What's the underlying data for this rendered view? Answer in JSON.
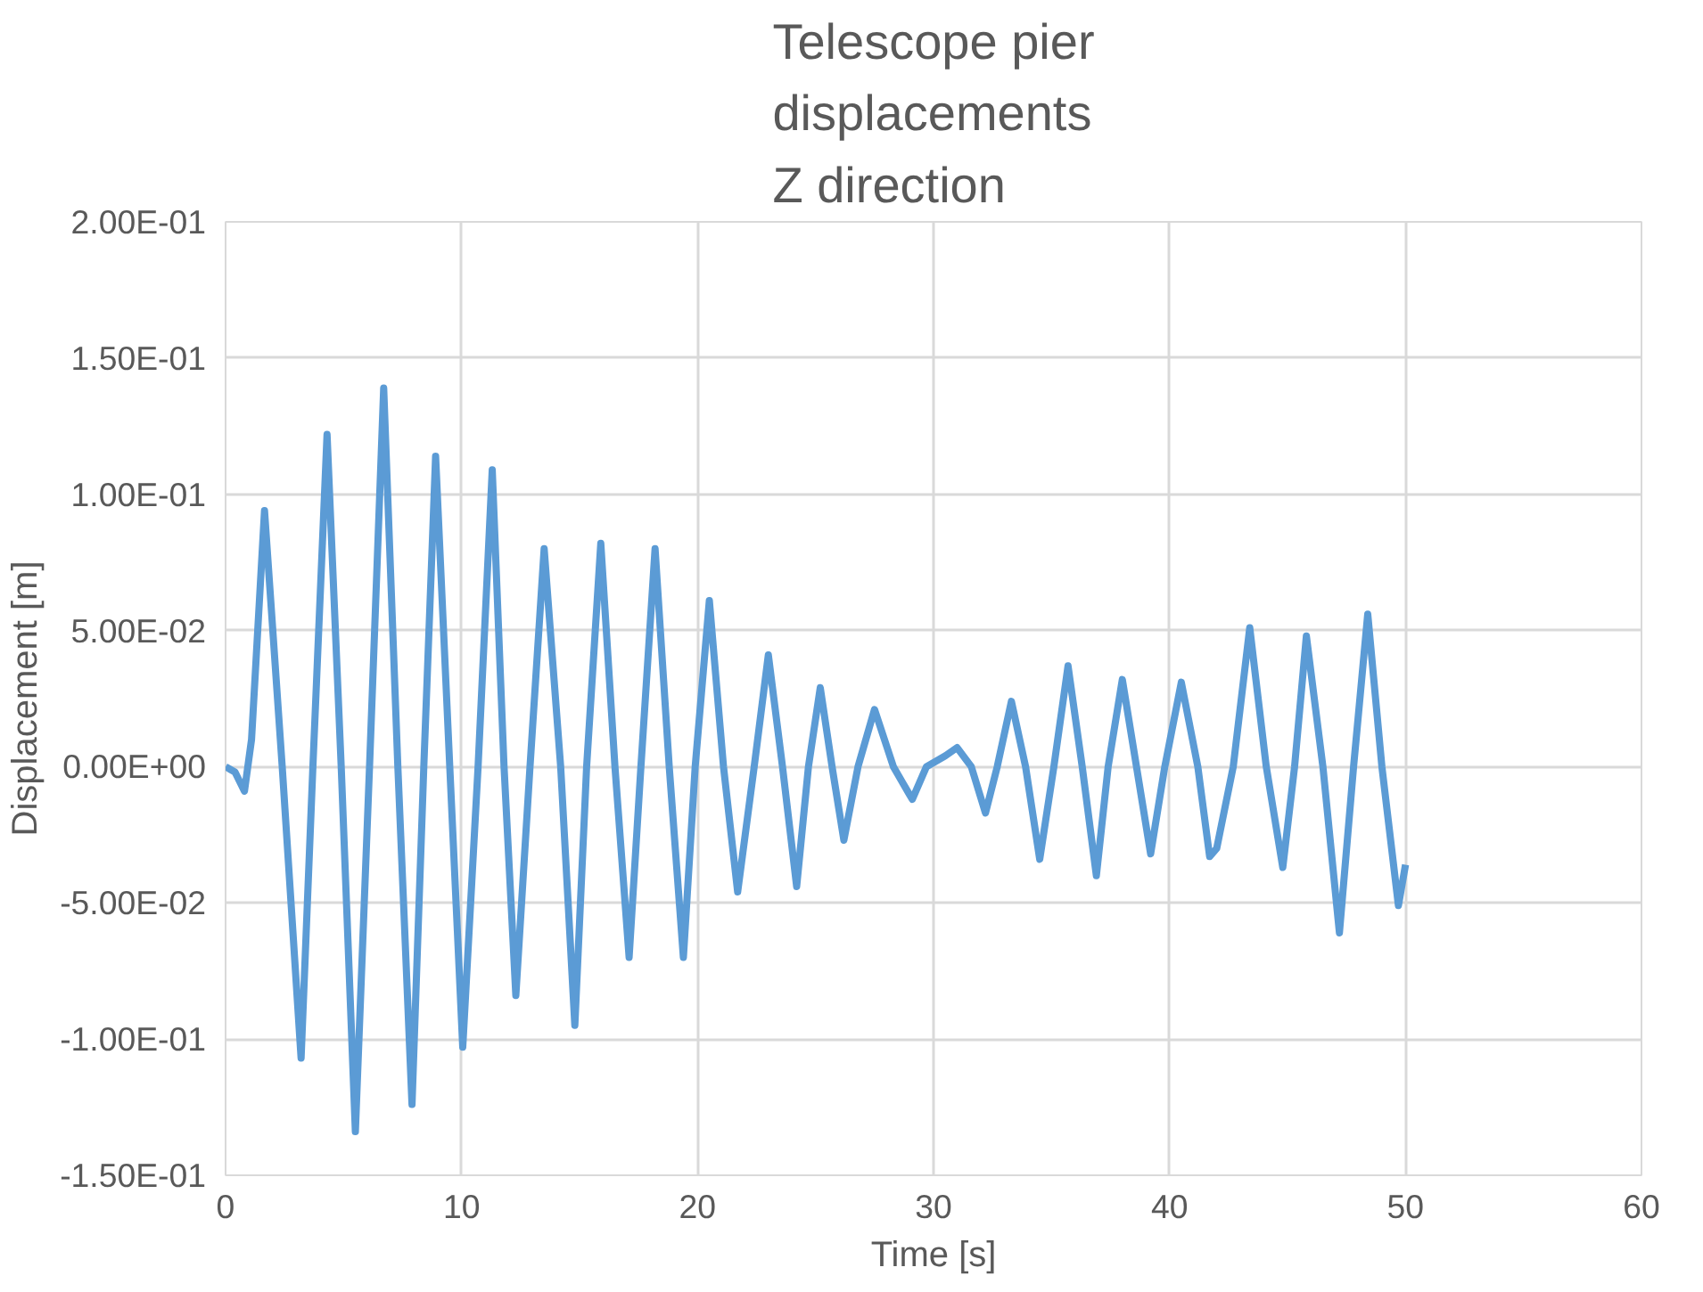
{
  "chart_data": {
    "type": "line",
    "title": "Telescope pier\ndisplacements\nZ direction",
    "xlabel": "Time [s]",
    "ylabel": "Displacement [m]",
    "series": [
      {
        "color": "#5b9bd5",
        "x": [
          0,
          0.4,
          0.8,
          1.1,
          1.65,
          2.4,
          3.2,
          3.7,
          4.3,
          4.9,
          5.5,
          6.1,
          6.7,
          7.3,
          7.9,
          8.4,
          8.9,
          9.5,
          10.05,
          10.7,
          11.3,
          11.8,
          12.3,
          12.9,
          13.5,
          14.2,
          14.8,
          15.3,
          15.9,
          16.5,
          17.1,
          17.6,
          18.2,
          18.8,
          19.4,
          19.9,
          20.5,
          21.1,
          21.7,
          22.4,
          23.0,
          23.6,
          24.2,
          24.7,
          25.2,
          25.7,
          26.2,
          26.8,
          27.5,
          28.3,
          29.1,
          29.7,
          30.5,
          31.0,
          31.6,
          32.2,
          32.7,
          33.3,
          33.9,
          34.5,
          35.1,
          35.7,
          36.3,
          36.9,
          37.4,
          38.0,
          38.6,
          39.2,
          39.8,
          40.5,
          41.2,
          41.7,
          42.0,
          42.7,
          43.4,
          44.1,
          44.8,
          45.3,
          45.8,
          46.5,
          47.2,
          47.8,
          48.4,
          49.0,
          49.7,
          50.0
        ],
        "values": [
          0,
          -0.002,
          -0.009,
          0.01,
          0.094,
          0.0,
          -0.107,
          0.0,
          0.122,
          0.0,
          -0.134,
          0.0,
          0.139,
          0.0,
          -0.124,
          0.0,
          0.114,
          0.0,
          -0.103,
          0.0,
          0.109,
          0.0,
          -0.084,
          0.0,
          0.08,
          0.0,
          -0.095,
          0.0,
          0.082,
          0.0,
          -0.07,
          0.0,
          0.08,
          0.0,
          -0.07,
          0.0,
          0.061,
          0.0,
          -0.046,
          0.0,
          0.041,
          0.0,
          -0.044,
          0.0,
          0.029,
          0.0,
          -0.027,
          0.0,
          0.021,
          0.0,
          -0.012,
          0.0,
          0.004,
          0.007,
          0.0,
          -0.017,
          0.0,
          0.024,
          0.0,
          -0.034,
          0.0,
          0.037,
          0.0,
          -0.04,
          0.0,
          0.032,
          0.0,
          -0.032,
          0.0,
          0.031,
          0.0,
          -0.033,
          -0.03,
          0.0,
          0.051,
          0.0,
          -0.037,
          0.0,
          0.048,
          0.0,
          -0.061,
          0.0,
          0.056,
          0.0,
          -0.051,
          -0.036
        ]
      }
    ],
    "xlim": [
      0,
      60
    ],
    "xticks": [
      0,
      10,
      20,
      30,
      40,
      50,
      60
    ],
    "ylim": [
      -0.15,
      0.2
    ],
    "yticks": [
      {
        "value": -0.15,
        "label": "-1.50E-01"
      },
      {
        "value": -0.1,
        "label": "-1.00E-01"
      },
      {
        "value": -0.05,
        "label": "-5.00E-02"
      },
      {
        "value": 0,
        "label": "0.00E+00"
      },
      {
        "value": 0.05,
        "label": "5.00E-02"
      },
      {
        "value": 0.1,
        "label": "1.00E-01"
      },
      {
        "value": 0.15,
        "label": "1.50E-01"
      },
      {
        "value": 0.2,
        "label": "2.00E-01"
      }
    ],
    "grid": true,
    "marker": "none",
    "line_style": "solid"
  }
}
